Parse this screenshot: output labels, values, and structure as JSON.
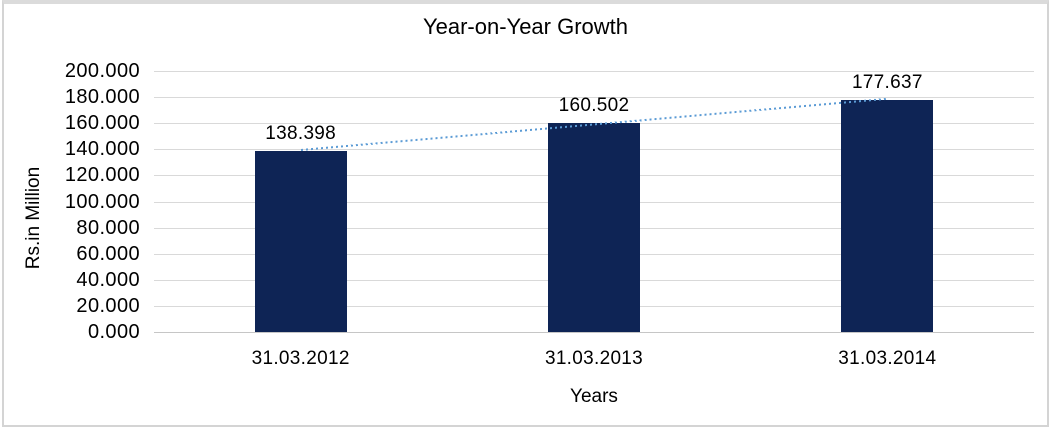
{
  "chart_data": {
    "type": "bar",
    "title": "Year-on-Year Growth",
    "xlabel": "Years",
    "ylabel": "Rs.in Million",
    "categories": [
      "31.03.2012",
      "31.03.2013",
      "31.03.2014"
    ],
    "values": [
      138.398,
      160.502,
      177.637
    ],
    "data_labels": [
      "138.398",
      "160.502",
      "177.637"
    ],
    "y_ticks": [
      "0.000",
      "20.000",
      "40.000",
      "60.000",
      "80.000",
      "100.000",
      "120.000",
      "140.000",
      "160.000",
      "180.000",
      "200.000"
    ],
    "ylim": [
      0,
      200
    ],
    "y_tick_step": 20,
    "grid": "horizontal",
    "legend": "none",
    "trendline": {
      "type": "linear",
      "style": "dotted"
    },
    "colors": {
      "bar": "#0e2455",
      "trendline": "#5b9bd5",
      "gridline": "#d9d9d9",
      "axis_line": "#c6c6c6",
      "text": "#000000",
      "frame_border": "#d4d4d4",
      "background": "#ffffff"
    }
  }
}
